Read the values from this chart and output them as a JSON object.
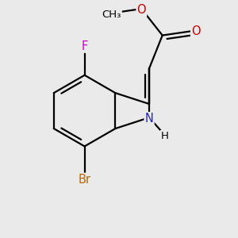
{
  "background_color": "#EAEAEA",
  "bond_color": "#000000",
  "atom_colors": {
    "F": "#CC00CC",
    "Br": "#BB6600",
    "N": "#2222CC",
    "O": "#CC0000",
    "H": "#000000",
    "C": "#000000"
  },
  "bond_width": 1.6,
  "figsize": [
    3.0,
    3.0
  ],
  "dpi": 100
}
